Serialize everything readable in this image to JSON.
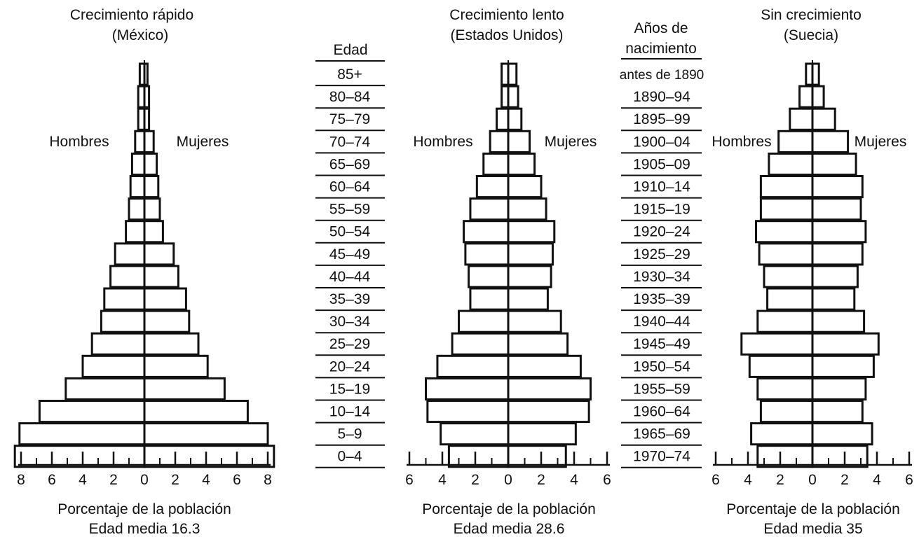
{
  "chart_data": [
    {
      "type": "bar",
      "orientation": "horizontal",
      "title": "Crecimiento rápido",
      "subtitle": "(México)",
      "left_label": "Hombres",
      "right_label": "Mujeres",
      "xlabel": "Porcentaje de la población",
      "note": "Edad media 16.3",
      "xlim": [
        -8,
        8
      ],
      "xticks": [
        -8,
        -6,
        -4,
        -2,
        0,
        2,
        4,
        6,
        8
      ],
      "categories": [
        "0–4",
        "5–9",
        "10–14",
        "15–19",
        "20–24",
        "25–29",
        "30–34",
        "35–39",
        "40–44",
        "45–49",
        "50–54",
        "55–59",
        "60–64",
        "65–69",
        "70–74",
        "75–79",
        "80–84",
        "85+"
      ],
      "series": [
        {
          "values": [
            8.4,
            8.1,
            6.8,
            5.1,
            4.0,
            3.4,
            2.8,
            2.6,
            2.2,
            1.9,
            1.2,
            1.0,
            0.9,
            0.8,
            0.6,
            0.4,
            0.4,
            0.3
          ]
        },
        {
          "values": [
            8.4,
            8.0,
            6.7,
            5.2,
            4.1,
            3.5,
            2.9,
            2.7,
            2.2,
            1.9,
            1.2,
            1.0,
            0.9,
            0.8,
            0.6,
            0.3,
            0.3,
            0.2
          ]
        }
      ]
    },
    {
      "type": "bar",
      "orientation": "horizontal",
      "title": "Crecimiento lento",
      "subtitle": "(Estados Unidos)",
      "left_label": "Hombres",
      "right_label": "Mujeres",
      "xlabel": "Porcentaje de la población",
      "note": "Edad media 28.6",
      "xlim": [
        -6,
        6
      ],
      "xticks": [
        -6,
        -4,
        -2,
        0,
        2,
        4,
        6
      ],
      "categories": [
        "0–4",
        "5–9",
        "10–14",
        "15–19",
        "20–24",
        "25–29",
        "30–34",
        "35–39",
        "40–44",
        "45–49",
        "50–54",
        "55–59",
        "60–64",
        "65–69",
        "70–74",
        "75–79",
        "80–84",
        "85+"
      ],
      "series": [
        {
          "values": [
            3.6,
            4.1,
            4.9,
            5.0,
            4.3,
            3.4,
            3.0,
            2.3,
            2.4,
            2.6,
            2.7,
            2.3,
            1.9,
            1.5,
            1.1,
            0.7,
            0.4,
            0.4
          ]
        },
        {
          "values": [
            3.5,
            4.1,
            4.9,
            5.0,
            4.4,
            3.6,
            3.2,
            2.4,
            2.6,
            2.7,
            2.8,
            2.3,
            2.0,
            1.6,
            1.3,
            0.8,
            0.6,
            0.5
          ]
        }
      ]
    },
    {
      "type": "bar",
      "orientation": "horizontal",
      "title": "Sin crecimiento",
      "subtitle": "(Suecia)",
      "left_label": "Hombres",
      "right_label": "Mujeres",
      "xlabel": "Porcentaje de la población",
      "note": "Edad media 35",
      "xlim": [
        -6,
        6
      ],
      "xticks": [
        -6,
        -4,
        -2,
        0,
        2,
        4,
        6
      ],
      "categories": [
        "0–4",
        "5–9",
        "10–14",
        "15–19",
        "20–24",
        "25–29",
        "30–34",
        "35–39",
        "40–44",
        "45–49",
        "50–54",
        "55–59",
        "60–64",
        "65–69",
        "70–74",
        "75–79",
        "80–84",
        "85+"
      ],
      "series": [
        {
          "values": [
            3.4,
            3.8,
            3.2,
            3.4,
            3.9,
            4.4,
            3.4,
            2.8,
            3.0,
            3.3,
            3.5,
            3.2,
            3.2,
            2.7,
            2.1,
            1.4,
            0.8,
            0.4
          ]
        },
        {
          "values": [
            3.4,
            3.7,
            3.1,
            3.3,
            3.8,
            4.1,
            3.2,
            2.6,
            2.8,
            3.1,
            3.3,
            3.0,
            3.1,
            2.7,
            2.2,
            1.4,
            0.7,
            0.4
          ]
        }
      ]
    }
  ],
  "age_column": {
    "header": "Edad",
    "labels": [
      "85+",
      "80–84",
      "75–79",
      "70–74",
      "65–69",
      "60–64",
      "55–59",
      "50–54",
      "45–49",
      "40–44",
      "35–39",
      "30–34",
      "25–29",
      "20–24",
      "15–19",
      "10–14",
      "5–9",
      "0–4"
    ]
  },
  "birth_column": {
    "header_line1": "Años de",
    "header_line2": "nacimiento",
    "labels": [
      "antes de 1890",
      "1890–94",
      "1895–99",
      "1900–04",
      "1905–09",
      "1910–14",
      "1915–19",
      "1920–24",
      "1925–29",
      "1930–34",
      "1935–39",
      "1940–44",
      "1945–49",
      "1950–54",
      "1955–59",
      "1960–64",
      "1965–69",
      "1970–74"
    ]
  },
  "colors": {
    "ink": "#111111",
    "paper": "#ffffff",
    "shade": "#c8c8c8"
  }
}
